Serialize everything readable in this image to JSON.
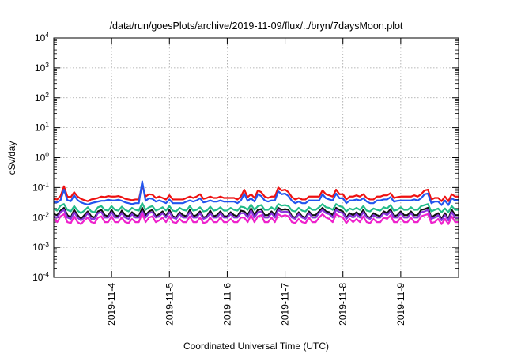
{
  "chart_data": {
    "type": "line",
    "title": "/data/run/goesPlots/archive/2019-11-09/flux/../bryn/7daysMoon.plot",
    "xlabel": "Coordinated Universal Time (UTC)",
    "ylabel": "cSv/day",
    "yscale": "log",
    "ylim": [
      0.0001,
      10000
    ],
    "ytick_labels": [
      {
        "base": "10",
        "exp": "-4"
      },
      {
        "base": "10",
        "exp": "-3"
      },
      {
        "base": "10",
        "exp": "-2"
      },
      {
        "base": "10",
        "exp": "-1"
      },
      {
        "base": "10",
        "exp": "0"
      },
      {
        "base": "10",
        "exp": "1"
      },
      {
        "base": "10",
        "exp": "2"
      },
      {
        "base": "10",
        "exp": "3"
      },
      {
        "base": "10",
        "exp": "4"
      }
    ],
    "xlim": [
      "2019-11-03T00:00",
      "2019-11-10T00:00"
    ],
    "x_tick_labels": [
      "2019-11-4",
      "2019-11-5",
      "2019-11-6",
      "2019-11-7",
      "2019-11-8",
      "2019-11-9"
    ],
    "grid": true,
    "legend": "none",
    "sampling": "regular intervals from 2019-11-03T00:00 to 2019-11-10T00:00",
    "series": [
      {
        "color": "#ee1111",
        "values": [
          0.042,
          0.04,
          0.052,
          0.11,
          0.05,
          0.048,
          0.07,
          0.05,
          0.042,
          0.038,
          0.035,
          0.04,
          0.042,
          0.045,
          0.05,
          0.048,
          0.052,
          0.05,
          0.05,
          0.052,
          0.048,
          0.042,
          0.04,
          0.038,
          0.04,
          0.04,
          0.12,
          0.05,
          0.06,
          0.058,
          0.045,
          0.05,
          0.045,
          0.04,
          0.055,
          0.04,
          0.04,
          0.04,
          0.04,
          0.045,
          0.05,
          0.045,
          0.05,
          0.06,
          0.042,
          0.045,
          0.05,
          0.045,
          0.045,
          0.05,
          0.045,
          0.045,
          0.045,
          0.045,
          0.04,
          0.05,
          0.085,
          0.048,
          0.06,
          0.045,
          0.08,
          0.07,
          0.05,
          0.045,
          0.05,
          0.05,
          0.1,
          0.08,
          0.085,
          0.07,
          0.048,
          0.04,
          0.045,
          0.04,
          0.04,
          0.05,
          0.05,
          0.05,
          0.05,
          0.08,
          0.06,
          0.055,
          0.05,
          0.085,
          0.06,
          0.06,
          0.04,
          0.05,
          0.05,
          0.055,
          0.05,
          0.06,
          0.045,
          0.04,
          0.04,
          0.05,
          0.05,
          0.055,
          0.055,
          0.065,
          0.045,
          0.048,
          0.05,
          0.05,
          0.05,
          0.05,
          0.055,
          0.05,
          0.06,
          0.08,
          0.085,
          0.04,
          0.045,
          0.045,
          0.035,
          0.05,
          0.035,
          0.06,
          0.05,
          0.05
        ]
      },
      {
        "color": "#2255ee",
        "values": [
          0.032,
          0.032,
          0.038,
          0.085,
          0.038,
          0.035,
          0.055,
          0.038,
          0.032,
          0.029,
          0.027,
          0.03,
          0.032,
          0.034,
          0.036,
          0.036,
          0.039,
          0.037,
          0.037,
          0.039,
          0.036,
          0.032,
          0.03,
          0.028,
          0.03,
          0.03,
          0.16,
          0.036,
          0.044,
          0.042,
          0.034,
          0.037,
          0.034,
          0.03,
          0.04,
          0.03,
          0.03,
          0.03,
          0.03,
          0.034,
          0.037,
          0.034,
          0.037,
          0.044,
          0.032,
          0.034,
          0.037,
          0.034,
          0.034,
          0.037,
          0.034,
          0.034,
          0.034,
          0.034,
          0.03,
          0.037,
          0.062,
          0.036,
          0.044,
          0.034,
          0.06,
          0.052,
          0.037,
          0.034,
          0.037,
          0.037,
          0.075,
          0.06,
          0.063,
          0.052,
          0.036,
          0.03,
          0.034,
          0.03,
          0.03,
          0.037,
          0.037,
          0.037,
          0.037,
          0.06,
          0.044,
          0.04,
          0.037,
          0.063,
          0.044,
          0.044,
          0.03,
          0.037,
          0.037,
          0.04,
          0.037,
          0.044,
          0.034,
          0.03,
          0.03,
          0.037,
          0.037,
          0.04,
          0.04,
          0.048,
          0.034,
          0.036,
          0.037,
          0.037,
          0.037,
          0.037,
          0.04,
          0.037,
          0.044,
          0.06,
          0.063,
          0.03,
          0.034,
          0.034,
          0.026,
          0.037,
          0.026,
          0.044,
          0.037,
          0.037
        ]
      },
      {
        "color": "#22bb88",
        "values": [
          0.02,
          0.017,
          0.025,
          0.028,
          0.018,
          0.016,
          0.024,
          0.017,
          0.014,
          0.017,
          0.022,
          0.016,
          0.015,
          0.022,
          0.024,
          0.018,
          0.017,
          0.024,
          0.018,
          0.017,
          0.023,
          0.018,
          0.016,
          0.021,
          0.018,
          0.017,
          0.03,
          0.018,
          0.022,
          0.024,
          0.017,
          0.019,
          0.022,
          0.017,
          0.024,
          0.017,
          0.016,
          0.021,
          0.018,
          0.017,
          0.024,
          0.017,
          0.018,
          0.022,
          0.016,
          0.017,
          0.023,
          0.017,
          0.018,
          0.022,
          0.017,
          0.017,
          0.021,
          0.018,
          0.017,
          0.023,
          0.022,
          0.018,
          0.027,
          0.018,
          0.024,
          0.026,
          0.018,
          0.018,
          0.022,
          0.018,
          0.028,
          0.025,
          0.026,
          0.024,
          0.017,
          0.016,
          0.021,
          0.017,
          0.016,
          0.022,
          0.018,
          0.018,
          0.022,
          0.028,
          0.022,
          0.021,
          0.018,
          0.028,
          0.024,
          0.022,
          0.016,
          0.02,
          0.018,
          0.021,
          0.018,
          0.024,
          0.017,
          0.016,
          0.02,
          0.018,
          0.017,
          0.022,
          0.02,
          0.026,
          0.017,
          0.018,
          0.022,
          0.018,
          0.018,
          0.022,
          0.018,
          0.018,
          0.024,
          0.026,
          0.028,
          0.016,
          0.018,
          0.02,
          0.015,
          0.02,
          0.015,
          0.024,
          0.018,
          0.018
        ]
      },
      {
        "color": "#111111",
        "values": [
          0.013,
          0.012,
          0.017,
          0.021,
          0.012,
          0.01,
          0.018,
          0.012,
          0.009,
          0.012,
          0.016,
          0.011,
          0.01,
          0.016,
          0.018,
          0.012,
          0.011,
          0.018,
          0.012,
          0.011,
          0.017,
          0.012,
          0.011,
          0.015,
          0.012,
          0.011,
          0.021,
          0.012,
          0.016,
          0.018,
          0.011,
          0.013,
          0.016,
          0.011,
          0.018,
          0.011,
          0.01,
          0.015,
          0.012,
          0.011,
          0.018,
          0.011,
          0.012,
          0.016,
          0.01,
          0.011,
          0.017,
          0.011,
          0.012,
          0.016,
          0.011,
          0.011,
          0.015,
          0.012,
          0.011,
          0.017,
          0.016,
          0.012,
          0.02,
          0.012,
          0.018,
          0.019,
          0.012,
          0.012,
          0.016,
          0.012,
          0.021,
          0.018,
          0.019,
          0.018,
          0.011,
          0.01,
          0.015,
          0.011,
          0.01,
          0.016,
          0.012,
          0.012,
          0.016,
          0.021,
          0.016,
          0.015,
          0.012,
          0.021,
          0.018,
          0.016,
          0.01,
          0.014,
          0.012,
          0.015,
          0.012,
          0.018,
          0.011,
          0.01,
          0.014,
          0.012,
          0.011,
          0.016,
          0.014,
          0.019,
          0.011,
          0.012,
          0.016,
          0.012,
          0.012,
          0.016,
          0.012,
          0.012,
          0.018,
          0.019,
          0.021,
          0.01,
          0.012,
          0.014,
          0.009,
          0.014,
          0.009,
          0.018,
          0.012,
          0.012
        ]
      },
      {
        "color": "#8833dd",
        "values": [
          0.011,
          0.01,
          0.015,
          0.018,
          0.01,
          0.009,
          0.015,
          0.01,
          0.008,
          0.01,
          0.014,
          0.009,
          0.009,
          0.014,
          0.015,
          0.01,
          0.01,
          0.015,
          0.01,
          0.01,
          0.014,
          0.01,
          0.009,
          0.013,
          0.01,
          0.01,
          0.016,
          0.01,
          0.014,
          0.015,
          0.01,
          0.011,
          0.014,
          0.01,
          0.015,
          0.01,
          0.009,
          0.013,
          0.01,
          0.01,
          0.015,
          0.01,
          0.01,
          0.014,
          0.009,
          0.01,
          0.014,
          0.01,
          0.01,
          0.014,
          0.01,
          0.01,
          0.013,
          0.01,
          0.01,
          0.014,
          0.014,
          0.01,
          0.017,
          0.01,
          0.015,
          0.016,
          0.01,
          0.01,
          0.014,
          0.01,
          0.018,
          0.015,
          0.016,
          0.015,
          0.01,
          0.009,
          0.013,
          0.01,
          0.009,
          0.014,
          0.01,
          0.01,
          0.014,
          0.018,
          0.014,
          0.013,
          0.01,
          0.018,
          0.015,
          0.014,
          0.009,
          0.012,
          0.01,
          0.013,
          0.01,
          0.015,
          0.01,
          0.009,
          0.012,
          0.01,
          0.01,
          0.014,
          0.012,
          0.016,
          0.01,
          0.01,
          0.014,
          0.01,
          0.01,
          0.014,
          0.01,
          0.01,
          0.015,
          0.016,
          0.018,
          0.009,
          0.01,
          0.012,
          0.008,
          0.012,
          0.008,
          0.015,
          0.01,
          0.01
        ]
      },
      {
        "color": "#ee22cc",
        "values": [
          0.009,
          0.007,
          0.011,
          0.013,
          0.007,
          0.0065,
          0.011,
          0.007,
          0.006,
          0.008,
          0.01,
          0.007,
          0.0065,
          0.01,
          0.011,
          0.007,
          0.007,
          0.011,
          0.007,
          0.007,
          0.01,
          0.007,
          0.0065,
          0.009,
          0.007,
          0.007,
          0.014,
          0.007,
          0.01,
          0.011,
          0.007,
          0.008,
          0.01,
          0.007,
          0.011,
          0.007,
          0.0065,
          0.009,
          0.007,
          0.007,
          0.011,
          0.007,
          0.007,
          0.01,
          0.0065,
          0.007,
          0.01,
          0.007,
          0.007,
          0.01,
          0.007,
          0.007,
          0.009,
          0.007,
          0.007,
          0.01,
          0.01,
          0.007,
          0.012,
          0.007,
          0.011,
          0.012,
          0.007,
          0.007,
          0.01,
          0.007,
          0.013,
          0.011,
          0.012,
          0.011,
          0.007,
          0.0065,
          0.009,
          0.007,
          0.0065,
          0.01,
          0.007,
          0.007,
          0.01,
          0.013,
          0.01,
          0.009,
          0.007,
          0.013,
          0.011,
          0.01,
          0.0065,
          0.009,
          0.007,
          0.009,
          0.007,
          0.011,
          0.007,
          0.0065,
          0.009,
          0.007,
          0.007,
          0.01,
          0.009,
          0.012,
          0.007,
          0.007,
          0.01,
          0.007,
          0.007,
          0.01,
          0.007,
          0.007,
          0.011,
          0.012,
          0.013,
          0.0065,
          0.007,
          0.009,
          0.006,
          0.009,
          0.006,
          0.011,
          0.007,
          0.007
        ]
      }
    ]
  }
}
